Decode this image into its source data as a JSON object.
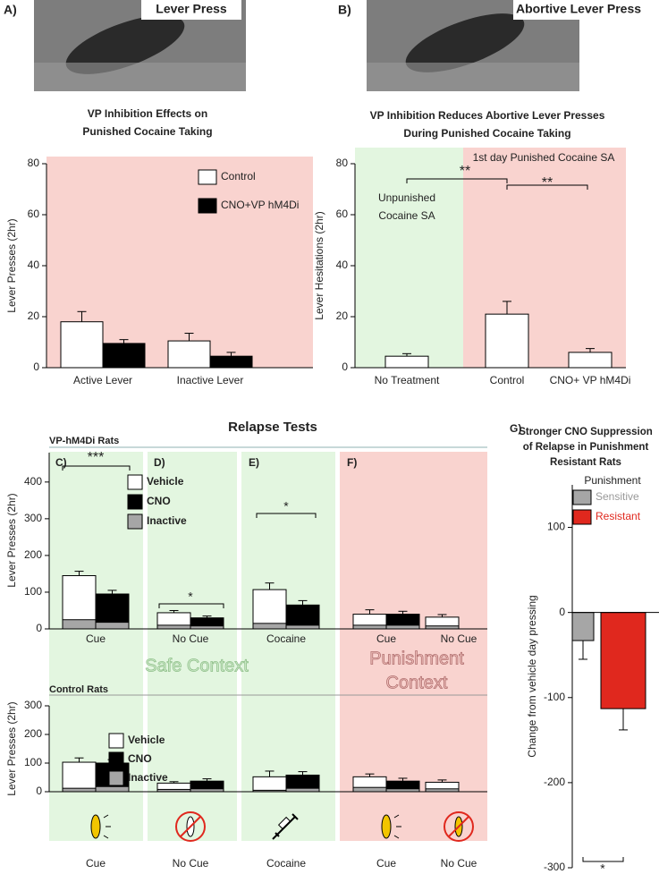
{
  "panel_labels": [
    "A)",
    "B)",
    "C)",
    "D)",
    "E)",
    "F)",
    "G)"
  ],
  "photo_captions": [
    "Lever Press",
    "Abortive Lever Press"
  ],
  "relapse_title": "Relapse Tests",
  "group_labels": [
    "VP-hM4Di Rats",
    "Control Rats"
  ],
  "contexts": [
    "Safe Context",
    "Punishment",
    "Context"
  ],
  "chart_data": [
    {
      "type": "bar",
      "title": [
        "VP Inhibition Effects on",
        "Punished Cocaine Taking"
      ],
      "y_label": "Lever Presses (2hr)",
      "categories": [
        "Active Lever",
        "Inactive Lever"
      ],
      "series": [
        {
          "name": "Control",
          "color": "#ffffff",
          "values": [
            18,
            10.5
          ],
          "errors": [
            4,
            3
          ]
        },
        {
          "name": "CNO+VP hM4Di",
          "color": "#000000",
          "values": [
            9.5,
            4.5
          ],
          "errors": [
            1.5,
            1.5
          ]
        }
      ],
      "ylim": [
        0,
        80
      ],
      "yticks": [
        0,
        20,
        40,
        60,
        80
      ]
    },
    {
      "type": "bar",
      "title": [
        "VP Inhibition Reduces Abortive Lever Presses",
        "During Punished Cocaine Taking"
      ],
      "y_label": "Lever Hesitations (2hr)",
      "categories": [
        "No Treatment",
        "Control",
        "CNO+ VP hM4Di"
      ],
      "values": [
        4.5,
        21,
        6
      ],
      "errors": [
        1,
        5,
        1.5
      ],
      "color": "#ffffff",
      "annotations": [
        "Unpunished",
        "Cocaine SA",
        "1st day Punished Cocaine SA",
        "**",
        "**"
      ],
      "ylim": [
        0,
        80
      ],
      "yticks": [
        0,
        20,
        40,
        60,
        80
      ]
    },
    {
      "type": "bar",
      "y_label": "Lever Presses (2hr)",
      "categories": [
        "Cue",
        "No Cue",
        "Cocaine",
        "Cue",
        "No Cue"
      ],
      "series": [
        {
          "name": "Vehicle",
          "color": "#ffffff",
          "values": [
            145,
            44,
            107,
            40,
            32
          ],
          "errors": [
            12,
            6,
            18,
            12,
            7
          ]
        },
        {
          "name": "CNO",
          "color": "#000000",
          "values": [
            95,
            30,
            65,
            40,
            null
          ],
          "errors": [
            10,
            5,
            12,
            8,
            null
          ]
        },
        {
          "name": "Inactive",
          "color": "#a6a6a6",
          "values": [
            25,
            10,
            15,
            10,
            8
          ],
          "cno_values": [
            18,
            8,
            10,
            10,
            null
          ]
        }
      ],
      "annotations": [
        "***",
        "*",
        "*"
      ],
      "ylim": [
        0,
        480
      ],
      "yticks": [
        0,
        100,
        200,
        300,
        400
      ]
    },
    {
      "type": "bar",
      "y_label": "Lever Presses (2hr)",
      "categories": [
        "Cue",
        "No Cue",
        "Cocaine",
        "Cue",
        "No Cue"
      ],
      "series": [
        {
          "name": "Vehicle",
          "color": "#ffffff",
          "values": [
            103,
            30,
            52,
            52,
            33
          ],
          "errors": [
            15,
            5,
            20,
            10,
            8
          ]
        },
        {
          "name": "CNO",
          "color": "#000000",
          "values": [
            100,
            37,
            58,
            37,
            null
          ],
          "errors": [
            12,
            8,
            12,
            10,
            null
          ]
        },
        {
          "name": "Inactive",
          "color": "#a6a6a6",
          "values": [
            12,
            8,
            5,
            15,
            10
          ],
          "cno_values": [
            18,
            10,
            12,
            10,
            null
          ]
        }
      ],
      "ylim": [
        0,
        300
      ],
      "yticks": [
        0,
        100,
        200,
        300
      ]
    },
    {
      "type": "bar",
      "title": [
        "Stronger CNO Suppression",
        "of Relapse in Punishment",
        "Resistant Rats"
      ],
      "y_label": "Change from vehicle day pressing",
      "legend_title": "Punishment",
      "series": [
        {
          "name": "Sensitive",
          "color": "#a6a6a6",
          "values": [
            -33
          ],
          "errors": [
            22
          ]
        },
        {
          "name": "Resistant",
          "color": "#e0281e",
          "values": [
            -113
          ],
          "errors": [
            25
          ]
        }
      ],
      "annotations": [
        "*"
      ],
      "ylim": [
        -300,
        150
      ],
      "yticks": [
        -300,
        -200,
        -100,
        0,
        100
      ]
    }
  ]
}
